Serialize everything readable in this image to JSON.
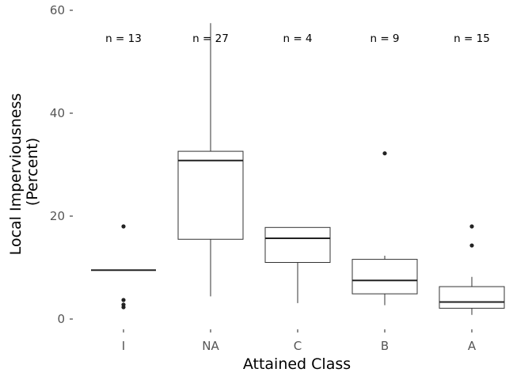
{
  "chart_data": {
    "type": "boxplot",
    "xlabel": "Attained Class",
    "ylabel_lines": [
      "Local  Imperviousness",
      "(Percent)"
    ],
    "ylim": [
      0,
      60
    ],
    "yticks": [
      0,
      20,
      40,
      60
    ],
    "grid": false,
    "categories": [
      "I",
      "NA",
      "C",
      "B",
      "A"
    ],
    "boxes": [
      {
        "category": "I",
        "n_label": "n = 13",
        "min": 9.5,
        "q1": 9.5,
        "median": 9.5,
        "q3": 9.5,
        "max": 9.5,
        "outliers": [
          18,
          3.7,
          2.8,
          2.3
        ]
      },
      {
        "category": "NA",
        "n_label": "n = 27",
        "min": 4.4,
        "q1": 15.5,
        "median": 30.8,
        "q3": 32.6,
        "max": 57.5,
        "outliers": []
      },
      {
        "category": "C",
        "n_label": "n = 4",
        "min": 3.1,
        "q1": 11.0,
        "median": 15.7,
        "q3": 17.8,
        "max": 17.8,
        "outliers": []
      },
      {
        "category": "B",
        "n_label": "n = 9",
        "min": 2.7,
        "q1": 4.9,
        "median": 7.5,
        "q3": 11.6,
        "max": 12.3,
        "outliers": [
          32.2
        ]
      },
      {
        "category": "A",
        "n_label": "n = 15",
        "min": 0.8,
        "q1": 2.1,
        "median": 3.3,
        "q3": 6.3,
        "max": 8.2,
        "outliers": [
          18,
          14.3
        ]
      }
    ]
  }
}
